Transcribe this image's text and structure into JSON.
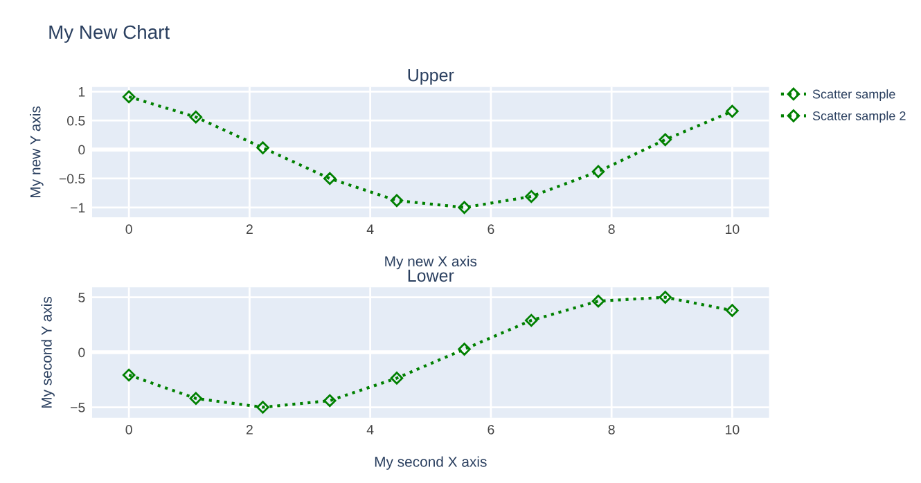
{
  "chart_data": [
    {
      "type": "line",
      "title": "Upper",
      "xlabel": "My new X axis",
      "ylabel": "My new Y axis",
      "annotations": [
        "My New Chart"
      ],
      "x": [
        0,
        1.11,
        2.22,
        3.33,
        4.44,
        5.56,
        6.67,
        7.78,
        8.89,
        10
      ],
      "series": [
        {
          "name": "Scatter sample",
          "color": "#008000",
          "values": [
            0.91,
            0.56,
            0.03,
            -0.5,
            -0.88,
            -1.0,
            -0.81,
            -0.38,
            0.17,
            0.66
          ]
        }
      ],
      "xlim": [
        -0.61,
        10.61
      ],
      "ylim": [
        -1.17,
        1.08
      ],
      "xticks": [
        0,
        2,
        4,
        6,
        8,
        10
      ],
      "yticks": [
        {
          "value": -1,
          "label": "−1"
        },
        {
          "value": -0.5,
          "label": "−0.5"
        },
        0,
        0.5,
        1
      ],
      "grid": true,
      "legend": "top right",
      "marker": "diamond",
      "line_style": "dotted"
    },
    {
      "type": "line",
      "title": "Lower",
      "xlabel": "My second X axis",
      "ylabel": "My second Y axis",
      "x": [
        0,
        1.11,
        2.22,
        3.33,
        4.44,
        5.56,
        6.67,
        7.78,
        8.89,
        10
      ],
      "series": [
        {
          "name": "Scatter sample 2",
          "color": "#008000",
          "values": [
            -2.07,
            -4.2,
            -5.0,
            -4.4,
            -2.35,
            0.28,
            2.9,
            4.65,
            5.0,
            3.8
          ]
        }
      ],
      "xlim": [
        -0.61,
        10.61
      ],
      "ylim": [
        -5.96,
        5.9
      ],
      "xticks": [
        0,
        2,
        4,
        6,
        8,
        10
      ],
      "yticks": [
        {
          "value": -5,
          "label": "−5"
        },
        0,
        5
      ],
      "grid": true,
      "legend": "top right",
      "marker": "diamond",
      "line_style": "dotted"
    }
  ]
}
